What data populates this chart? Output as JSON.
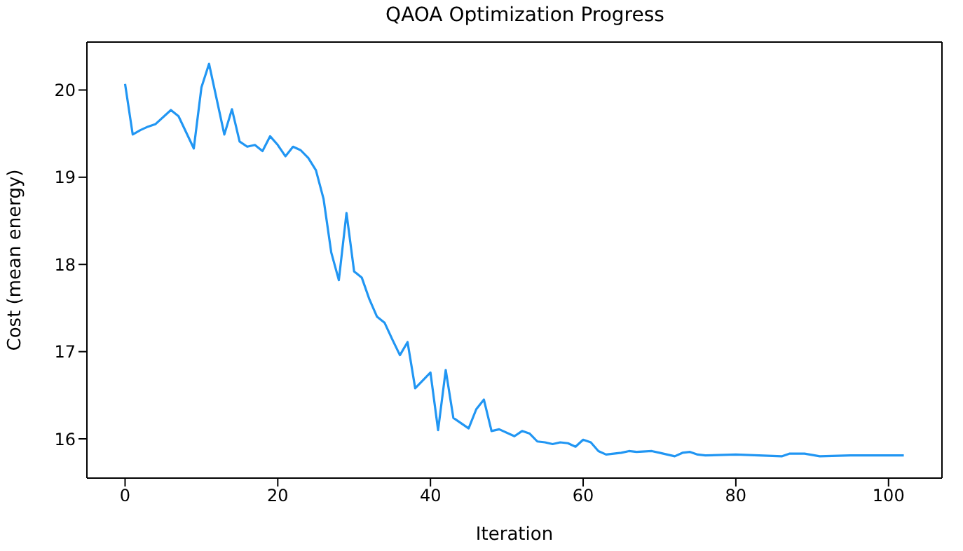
{
  "chart_data": {
    "type": "line",
    "title": "QAOA Optimization Progress",
    "xlabel": "Iteration",
    "ylabel": "Cost (mean energy)",
    "x": [
      0,
      1,
      2,
      3,
      4,
      6,
      7,
      9,
      10,
      11,
      13,
      14,
      15,
      16,
      17,
      18,
      19,
      20,
      21,
      22,
      23,
      24,
      25,
      26,
      27,
      28,
      29,
      30,
      31,
      32,
      33,
      34,
      35,
      36,
      37,
      38,
      40,
      41,
      42,
      43,
      45,
      46,
      47,
      48,
      49,
      51,
      52,
      53,
      54,
      55,
      56,
      57,
      58,
      59,
      60,
      61,
      62,
      63,
      64,
      65,
      66,
      67,
      69,
      70,
      72,
      73,
      74,
      75,
      76,
      80,
      86,
      87,
      89,
      91,
      95,
      102
    ],
    "series": [
      {
        "color": "#2196f3",
        "values": [
          20.07,
          19.49,
          19.54,
          19.58,
          19.61,
          19.77,
          19.7,
          19.33,
          20.03,
          20.3,
          19.49,
          19.78,
          19.41,
          19.35,
          19.37,
          19.3,
          19.47,
          19.37,
          19.24,
          19.35,
          19.31,
          19.22,
          19.08,
          18.75,
          18.14,
          17.82,
          18.59,
          17.92,
          17.85,
          17.6,
          17.4,
          17.33,
          17.14,
          16.96,
          17.11,
          16.58,
          16.76,
          16.1,
          16.79,
          16.24,
          16.12,
          16.34,
          16.45,
          16.09,
          16.11,
          16.03,
          16.09,
          16.06,
          15.97,
          15.96,
          15.94,
          15.96,
          15.95,
          15.91,
          15.99,
          15.96,
          15.86,
          15.82,
          15.83,
          15.84,
          15.86,
          15.85,
          15.86,
          15.84,
          15.8,
          15.84,
          15.85,
          15.82,
          15.81,
          15.82,
          15.8,
          15.83,
          15.83,
          15.8,
          15.81,
          15.81
        ]
      }
    ],
    "xlim": [
      -5,
      107
    ],
    "ylim": [
      15.55,
      20.55
    ],
    "xticks": [
      0,
      20,
      40,
      60,
      80,
      100
    ],
    "yticks": [
      16,
      17,
      18,
      19,
      20
    ],
    "marker": "none",
    "line_style": "solid"
  }
}
